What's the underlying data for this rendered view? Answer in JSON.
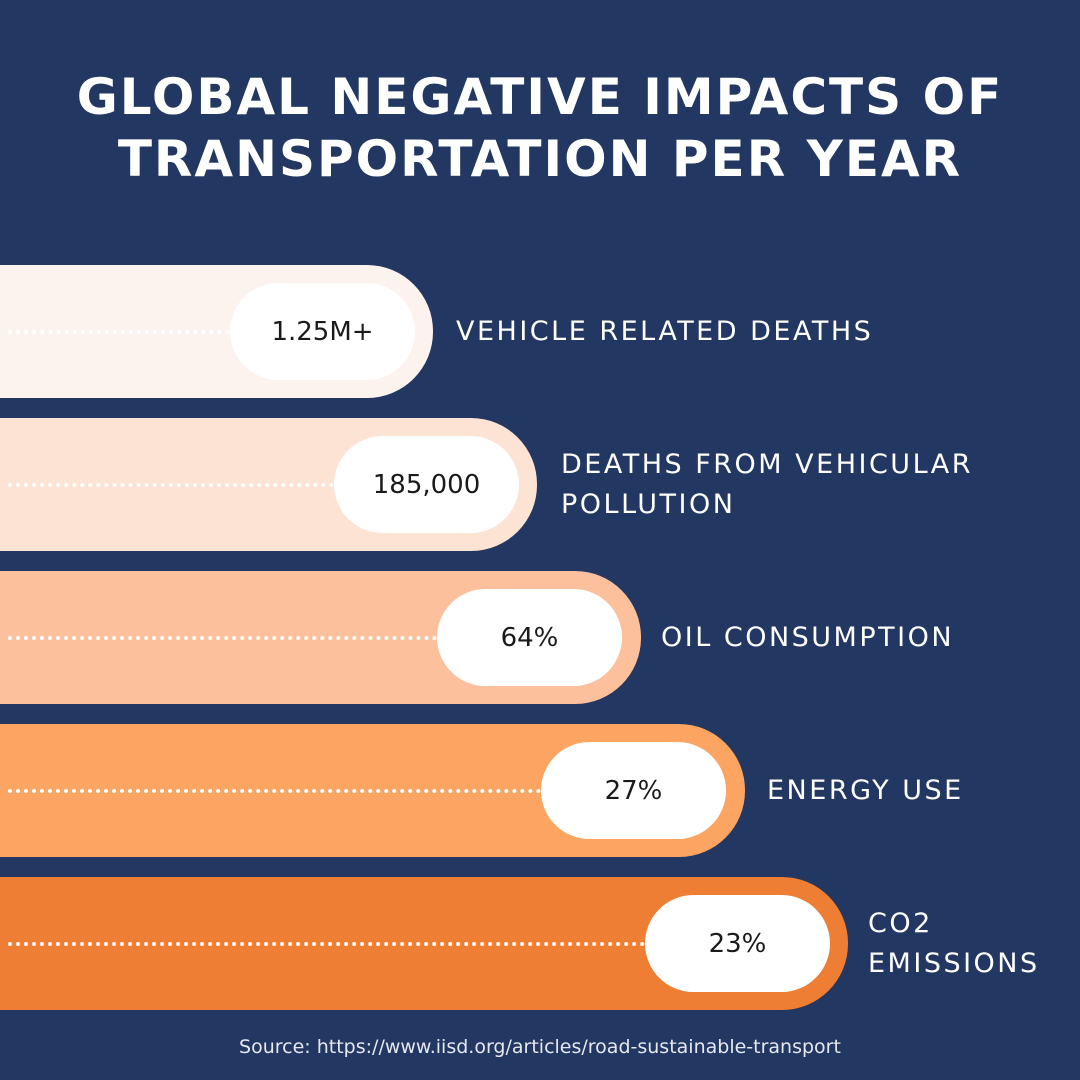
{
  "title": {
    "line1": "GLOBAL NEGATIVE IMPACTS OF",
    "line2": "TRANSPORTATION PER YEAR"
  },
  "items": [
    {
      "value": "1.25M+",
      "label": "VEHICLE RELATED DEATHS",
      "color": "#fdf3ee"
    },
    {
      "value": "185,000",
      "label": "DEATHS FROM VEHICULAR POLLUTION",
      "color": "#fde3d4"
    },
    {
      "value": "64%",
      "label": "OIL CONSUMPTION",
      "color": "#fcc09c"
    },
    {
      "value": "27%",
      "label": "ENERGY USE",
      "color": "#fca462"
    },
    {
      "value": "23%",
      "label": "CO2 EMISSIONS",
      "color": "#ee7e33"
    }
  ],
  "source": "Source: https://www.iisd.org/articles/road-sustainable-transport",
  "colors": {
    "background": "#223762",
    "pill": "#ffffff"
  }
}
